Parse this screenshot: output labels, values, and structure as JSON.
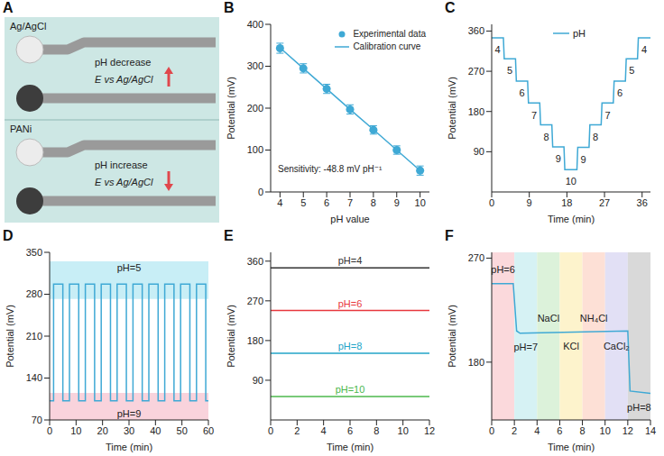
{
  "diagram": {
    "panel": "A",
    "reference_label": "Ag/AgCl",
    "working_label": "PANi",
    "cases": [
      {
        "text": "pH decrease",
        "potential": "E vs Ag/AgCl",
        "arrow": "up"
      },
      {
        "text": "pH increase",
        "potential": "E vs Ag/AgCl",
        "arrow": "down"
      }
    ]
  },
  "chart_data": [
    {
      "panel": "B",
      "type": "scatter",
      "x_label": "pH value",
      "y_label": "Potential (mV)",
      "x": [
        4,
        5,
        6,
        7,
        8,
        9,
        10
      ],
      "xlim": [
        3.6,
        10.4
      ],
      "xticks": [
        4,
        5,
        6,
        7,
        8,
        9,
        10
      ],
      "ylim": [
        0,
        400
      ],
      "yticks": [
        0,
        100,
        200,
        300,
        400
      ],
      "legend": "upper right",
      "annotations": [
        {
          "text": "Sensitivity: -48.8 mV pH⁻¹"
        }
      ],
      "series": [
        {
          "name": "Experimental data",
          "type": "scatter",
          "marker": "circle",
          "color": "#3fa9d5",
          "values": [
            343,
            295,
            246,
            197,
            148,
            100,
            51
          ],
          "error": [
            12,
            11,
            11,
            11,
            10,
            10,
            11
          ]
        },
        {
          "name": "Calibration curve",
          "type": "line",
          "color": "#3fa9d5",
          "values": [
            344,
            295,
            246,
            197,
            149,
            100,
            51
          ]
        }
      ]
    },
    {
      "panel": "C",
      "type": "line",
      "x_label": "Time (min)",
      "y_label": "Potential (mV)",
      "xlim": [
        0,
        38
      ],
      "xticks": [
        0,
        9,
        18,
        27,
        36
      ],
      "ylim": [
        0,
        375
      ],
      "yticks": [
        90,
        180,
        270,
        360
      ],
      "legend": "upper center",
      "x": [
        0,
        2.8,
        3.0,
        5.7,
        5.9,
        8.6,
        8.8,
        11.5,
        11.7,
        14.4,
        14.6,
        17.3,
        17.5,
        20.4,
        20.6,
        23.3,
        23.5,
        26.2,
        26.4,
        29.1,
        29.3,
        32.0,
        32.2,
        34.9,
        35.1,
        38
      ],
      "series": [
        {
          "name": "pH",
          "color": "#3fa9d5",
          "values": [
            345,
            345,
            298,
            298,
            248,
            248,
            199,
            199,
            150,
            150,
            101,
            101,
            50,
            50,
            100,
            100,
            150,
            150,
            199,
            199,
            248,
            248,
            298,
            298,
            345,
            345
          ]
        }
      ],
      "annotations": [
        {
          "x": 1.4,
          "y": 318,
          "text": "4"
        },
        {
          "x": 4.35,
          "y": 271,
          "text": "5"
        },
        {
          "x": 7.25,
          "y": 221,
          "text": "6"
        },
        {
          "x": 10.15,
          "y": 172,
          "text": "7"
        },
        {
          "x": 13.05,
          "y": 123,
          "text": "8"
        },
        {
          "x": 15.95,
          "y": 74,
          "text": "9"
        },
        {
          "x": 18.95,
          "y": 23,
          "text": "10"
        },
        {
          "x": 21.95,
          "y": 73,
          "text": "9"
        },
        {
          "x": 24.85,
          "y": 123,
          "text": "8"
        },
        {
          "x": 27.75,
          "y": 172,
          "text": "7"
        },
        {
          "x": 30.65,
          "y": 221,
          "text": "6"
        },
        {
          "x": 33.55,
          "y": 271,
          "text": "5"
        },
        {
          "x": 36.5,
          "y": 318,
          "text": "4"
        }
      ]
    },
    {
      "panel": "D",
      "type": "line",
      "x_label": "Time (min)",
      "y_label": "Potential (mV)",
      "xlim": [
        0,
        60
      ],
      "xticks": [
        0,
        10,
        20,
        30,
        40,
        50,
        60
      ],
      "ylim": [
        70,
        350
      ],
      "yticks": [
        70,
        140,
        210,
        280,
        350
      ],
      "x": [
        0,
        1.5,
        1.5,
        5,
        5,
        7.5,
        7.5,
        11,
        11,
        13.5,
        13.5,
        17,
        17,
        19.5,
        19.5,
        23,
        23,
        25.5,
        25.5,
        29,
        29,
        31.5,
        31.5,
        35,
        35,
        37.5,
        37.5,
        41,
        41,
        43.5,
        43.5,
        47,
        47,
        49.5,
        49.5,
        53,
        53,
        55.5,
        55.5,
        59,
        59,
        60
      ],
      "series": [
        {
          "name": "Potential",
          "color": "#3fa9d5",
          "values": [
            102,
            102,
            297,
            297,
            102,
            102,
            297,
            297,
            102,
            102,
            297,
            297,
            102,
            102,
            297,
            297,
            102,
            102,
            297,
            297,
            102,
            102,
            297,
            297,
            102,
            102,
            297,
            297,
            102,
            102,
            297,
            297,
            102,
            102,
            297,
            297,
            102,
            102,
            297,
            297,
            102,
            102
          ]
        }
      ],
      "bands": [
        {
          "y1": 272,
          "y2": 335,
          "color": "#c8eef6",
          "label": "pH=5"
        },
        {
          "y1": 70,
          "y2": 115,
          "color": "#f9d3dc",
          "label": "pH=9"
        }
      ]
    },
    {
      "panel": "E",
      "type": "line",
      "x_label": "Time (min)",
      "y_label": "Potential (mV)",
      "xlim": [
        0,
        12
      ],
      "xticks": [
        0,
        2,
        4,
        6,
        8,
        10,
        12
      ],
      "ylim": [
        0,
        380
      ],
      "yticks": [
        90,
        180,
        270,
        360
      ],
      "x": [
        0,
        6,
        12
      ],
      "series": [
        {
          "name": "pH=4",
          "color": "#333333",
          "values": [
            345,
            345,
            345
          ]
        },
        {
          "name": "pH=6",
          "color": "#e8383d",
          "values": [
            248,
            248,
            248
          ]
        },
        {
          "name": "pH=8",
          "color": "#22a5c9",
          "values": [
            151,
            151,
            151
          ]
        },
        {
          "name": "pH=10",
          "color": "#4db84d",
          "values": [
            53,
            53,
            53
          ]
        }
      ]
    },
    {
      "panel": "F",
      "type": "line",
      "x_label": "Time (min)",
      "y_label": "Potential (mV)",
      "xlim": [
        0,
        14
      ],
      "xticks": [
        0,
        2,
        4,
        6,
        8,
        10,
        12,
        14
      ],
      "ylim": [
        130,
        275
      ],
      "yticks": [
        180,
        270
      ],
      "x": [
        0,
        1.9,
        2.2,
        2.5,
        12,
        12.2,
        14
      ],
      "series": [
        {
          "name": "Potential",
          "color": "#3fa9d5",
          "values": [
            248,
            248,
            207,
            205,
            207,
            155,
            153
          ]
        }
      ],
      "bands": [
        {
          "x1": 0,
          "x2": 2,
          "color": "#fbd9dc"
        },
        {
          "x1": 2,
          "x2": 4,
          "color": "#d6f2f4"
        },
        {
          "x1": 4,
          "x2": 6,
          "color": "#dcf2da"
        },
        {
          "x1": 6,
          "x2": 8,
          "color": "#fdf3cc"
        },
        {
          "x1": 8,
          "x2": 10,
          "color": "#fde0d6"
        },
        {
          "x1": 10,
          "x2": 12,
          "color": "#e2e0f5"
        },
        {
          "x1": 12,
          "x2": 14,
          "color": "#d9d9d9"
        }
      ],
      "annotations": [
        {
          "x": 1,
          "y": 260,
          "text": "pH=6"
        },
        {
          "x": 3,
          "y": 193,
          "text": "pH=7"
        },
        {
          "x": 5,
          "y": 218,
          "text": "NaCl"
        },
        {
          "x": 7,
          "y": 194,
          "text": "KCl"
        },
        {
          "x": 9,
          "y": 218,
          "text": "NH₄Cl"
        },
        {
          "x": 11,
          "y": 194,
          "text": "CaCl₂"
        },
        {
          "x": 13,
          "y": 141,
          "text": "pH=8"
        }
      ]
    }
  ]
}
